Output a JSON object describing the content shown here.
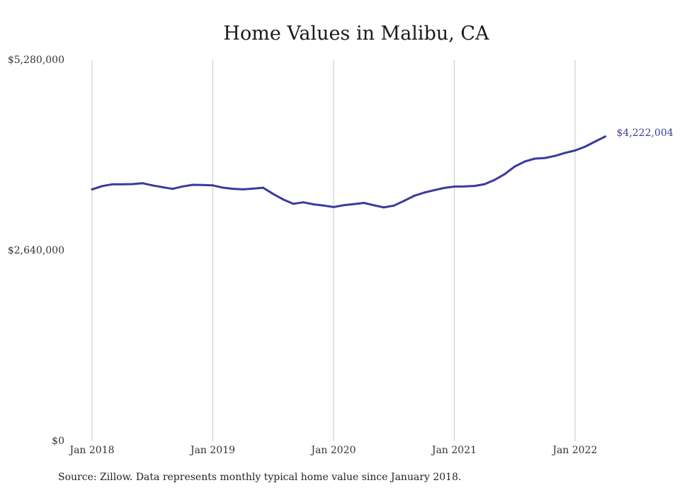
{
  "chart_data": {
    "type": "line",
    "title": "Home Values in Malibu, CA",
    "xlabel": "",
    "ylabel": "",
    "ylim": [
      0,
      5280000
    ],
    "y_ticks": [
      {
        "value": 0,
        "label": "$0"
      },
      {
        "value": 2640000,
        "label": "$2,640,000"
      },
      {
        "value": 5280000,
        "label": "$5,280,000"
      }
    ],
    "x_ticks": [
      {
        "month_index": 0,
        "label": "Jan 2018"
      },
      {
        "month_index": 12,
        "label": "Jan 2019"
      },
      {
        "month_index": 24,
        "label": "Jan 2020"
      },
      {
        "month_index": 36,
        "label": "Jan 2021"
      },
      {
        "month_index": 48,
        "label": "Jan 2022"
      }
    ],
    "x_start": "2018-01",
    "grid": "vertical",
    "line_color": "#3b3a9e",
    "grid_color": "#c8c8c8",
    "series": [
      {
        "name": "",
        "end_label": "$4,222,004",
        "values": [
          3490000,
          3535000,
          3560000,
          3560000,
          3563000,
          3575000,
          3545000,
          3520000,
          3497000,
          3530000,
          3553000,
          3550000,
          3545000,
          3513000,
          3498000,
          3490000,
          3500000,
          3512000,
          3426000,
          3350000,
          3290000,
          3310000,
          3283000,
          3266000,
          3245000,
          3270000,
          3285000,
          3302000,
          3270000,
          3240000,
          3265000,
          3330000,
          3400000,
          3445000,
          3478000,
          3510000,
          3528000,
          3530000,
          3537000,
          3562000,
          3620000,
          3700000,
          3806000,
          3876000,
          3916000,
          3925000,
          3953000,
          3995000,
          4029000,
          4082000,
          4152000,
          4222004
        ]
      }
    ]
  },
  "footer": {
    "source": "Source: Zillow. Data represents monthly typical home value since January 2018."
  }
}
